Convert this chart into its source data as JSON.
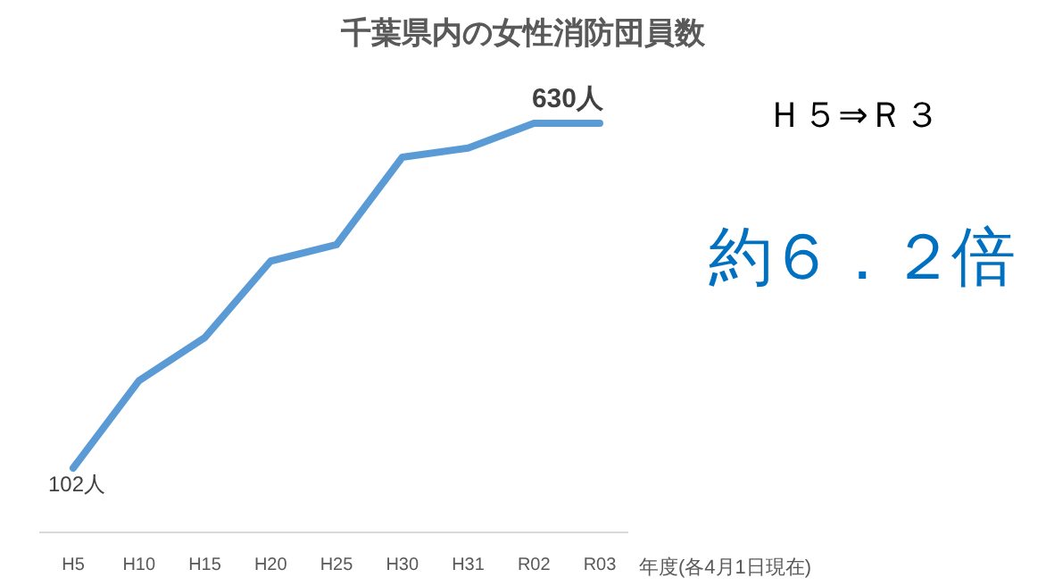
{
  "chart_data": {
    "type": "line",
    "title": "千葉県内の女性消防団員数",
    "xlabel": "年度(各4月1日現在)",
    "categories": [
      "H5",
      "H10",
      "H15",
      "H20",
      "H25",
      "H30",
      "H31",
      "R02",
      "R03"
    ],
    "series": [
      {
        "color": "#5b9bd5",
        "values": [
          102,
          236,
          302,
          419,
          444,
          578,
          592,
          630,
          630
        ],
        "value_labels": [
          "102人",
          null,
          null,
          null,
          null,
          null,
          null,
          null,
          "630人"
        ]
      }
    ],
    "annotations": [
      "Ｈ５⇒Ｒ３",
      "約６．２倍"
    ],
    "marker": "none",
    "line_style": "solid"
  }
}
